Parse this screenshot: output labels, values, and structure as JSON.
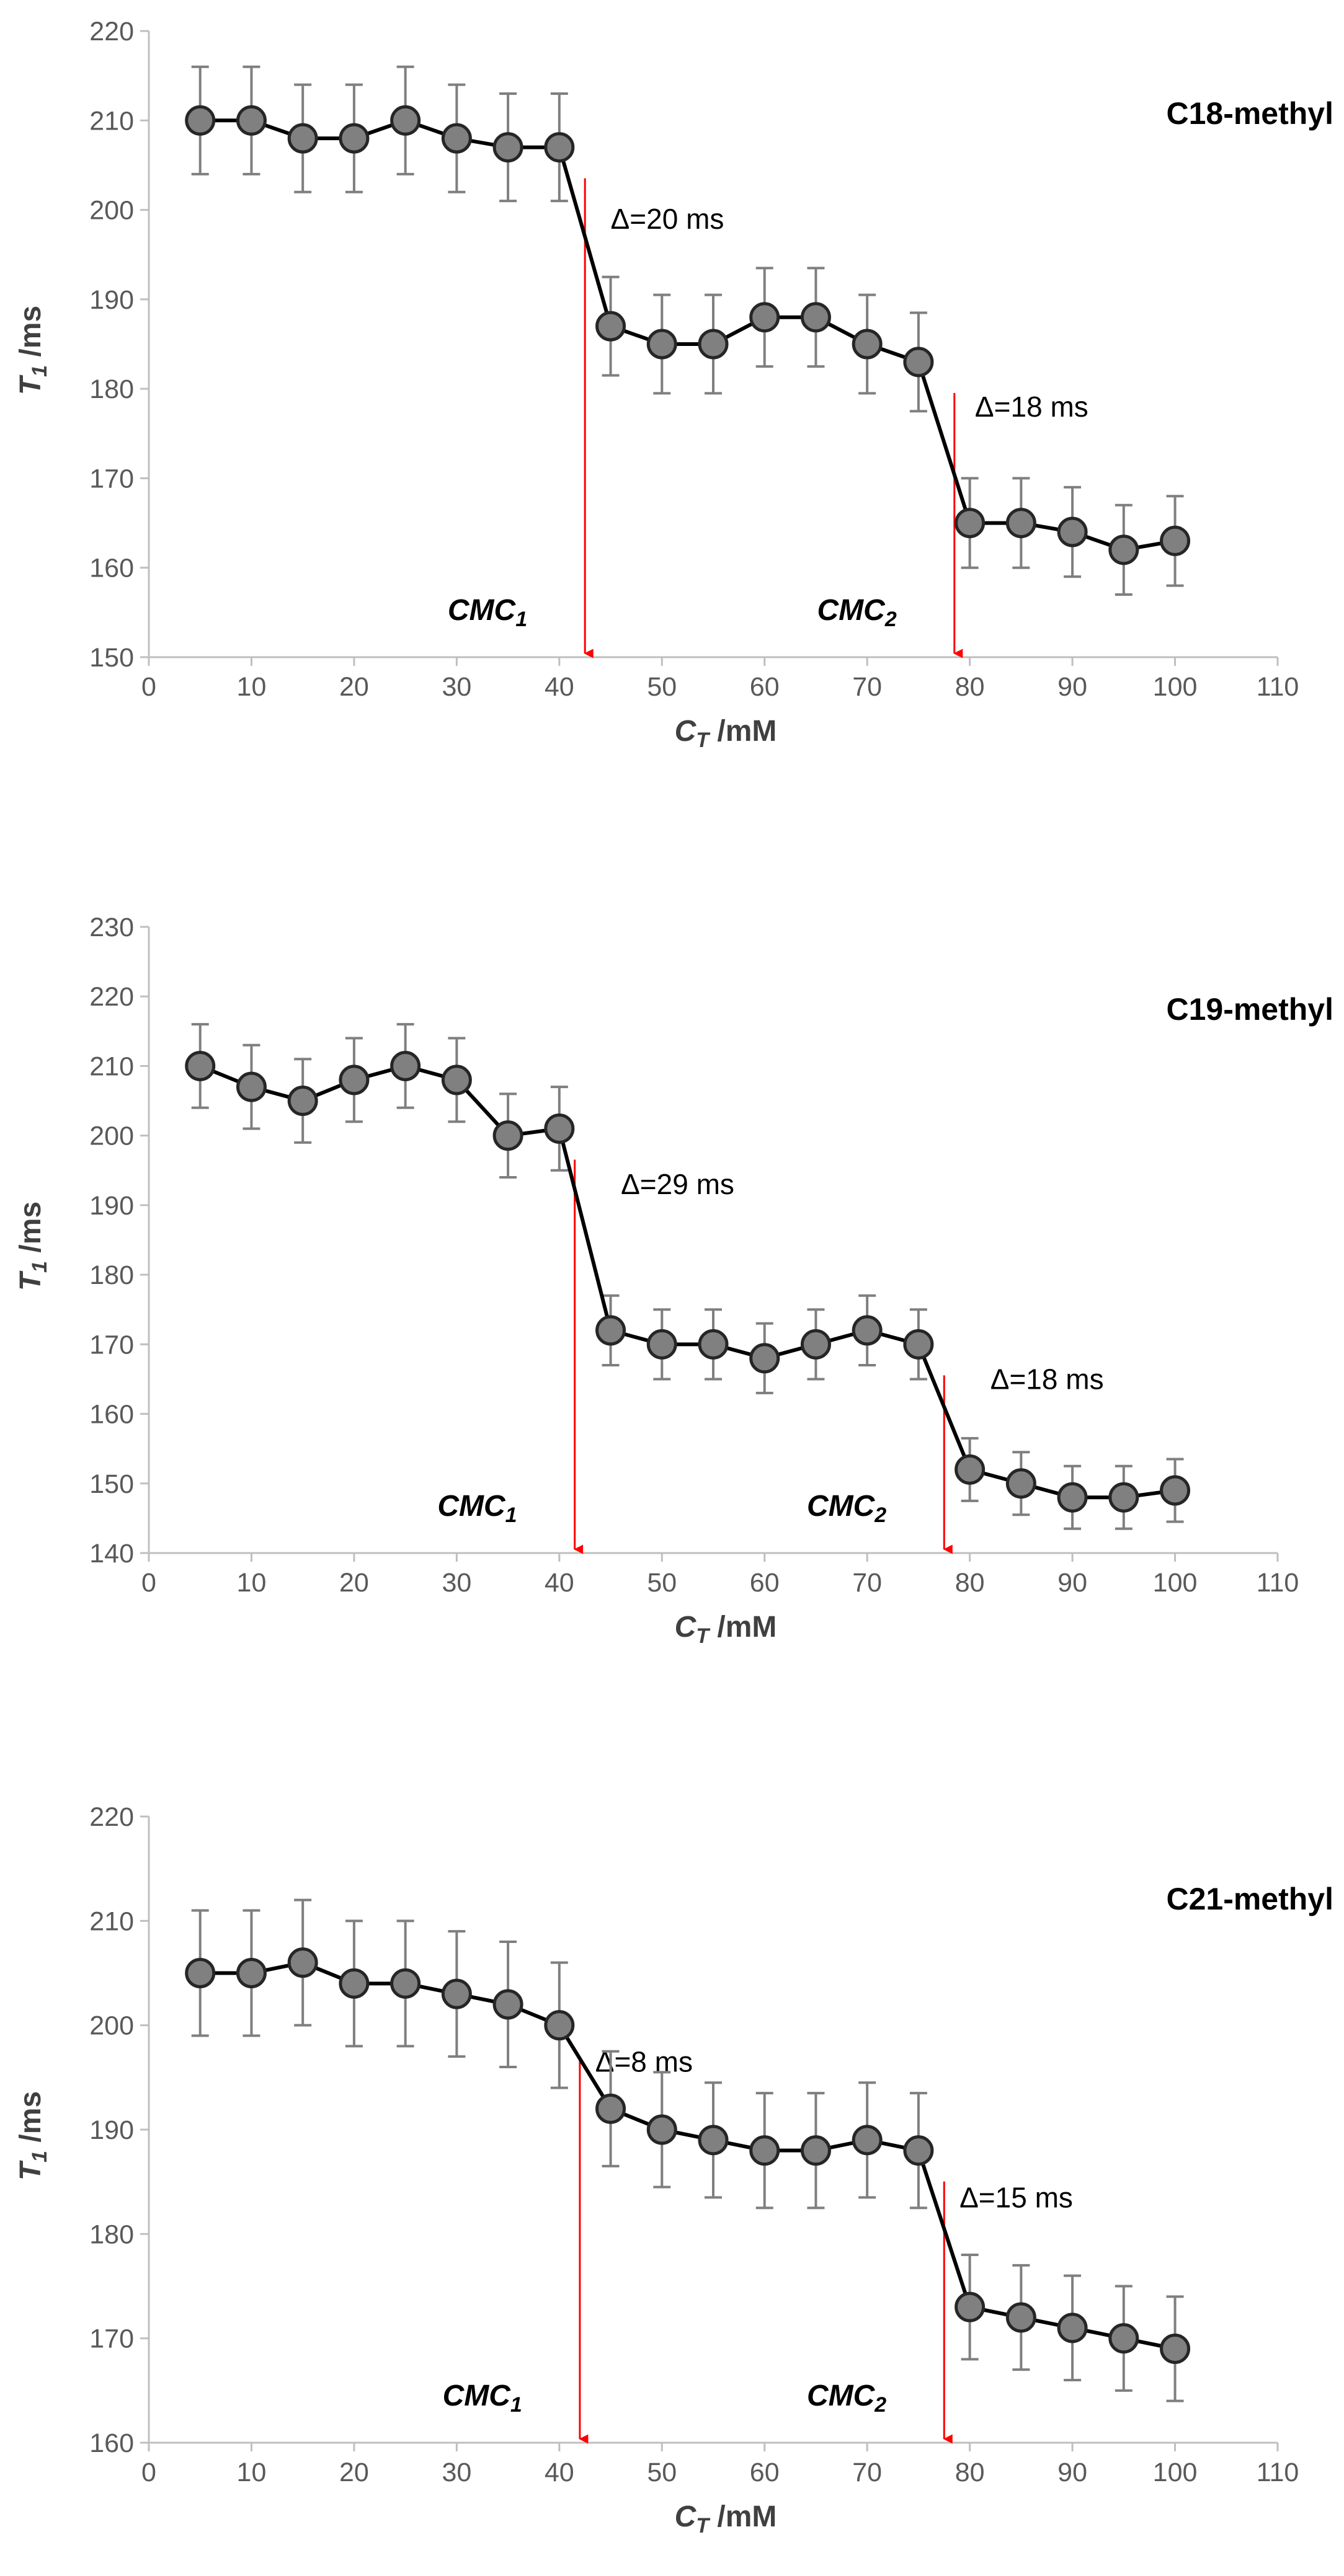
{
  "chart_data": [
    {
      "type": "line",
      "title": "C18-methyl",
      "xlabel": {
        "main": "C",
        "sub": "T",
        "unit": " /mM"
      },
      "ylabel": {
        "main": "T",
        "sub": "1",
        "unit": " /ms"
      },
      "xlim": [
        0,
        110
      ],
      "ylim": [
        150,
        220
      ],
      "xticks": [
        0,
        10,
        20,
        30,
        40,
        50,
        60,
        70,
        80,
        90,
        100,
        110
      ],
      "yticks": [
        150,
        160,
        170,
        180,
        190,
        200,
        210,
        220
      ],
      "series": [
        {
          "name": "T1",
          "x": [
            5,
            10,
            15,
            20,
            25,
            30,
            35,
            40,
            45,
            50,
            55,
            60,
            65,
            70,
            75,
            80,
            85,
            90,
            95,
            100
          ],
          "y": [
            210,
            210,
            208,
            208,
            210,
            208,
            207,
            207,
            187,
            185,
            185,
            188,
            188,
            185,
            183,
            165,
            165,
            164,
            162,
            163
          ],
          "error": [
            6,
            6,
            6,
            6,
            6,
            6,
            6,
            6,
            5.5,
            5.5,
            5.5,
            5.5,
            5.5,
            5.5,
            5.5,
            5,
            5,
            5,
            5,
            5
          ]
        }
      ],
      "annotations": {
        "cmc": [
          {
            "main": "CMC",
            "sub": "1",
            "x": 42.5,
            "label_x": 33
          },
          {
            "main": "CMC",
            "sub": "2",
            "x": 78.5,
            "label_x": 69
          }
        ],
        "deltas": [
          {
            "text": "Δ=20 ms",
            "x": 45,
            "y": 199
          },
          {
            "text": "Δ=18 ms",
            "x": 80.5,
            "y": 178
          }
        ]
      },
      "colors": {
        "marker_fill": "#808080",
        "marker_edge": "#262626",
        "line": "#000000",
        "error": "#7f7f7f",
        "arrow": "#ff0000",
        "axis": "#bfbfbf"
      }
    },
    {
      "type": "line",
      "title": "C19-methyl",
      "xlabel": {
        "main": "C",
        "sub": "T",
        "unit": " /mM"
      },
      "ylabel": {
        "main": "T",
        "sub": "1",
        "unit": " /ms"
      },
      "xlim": [
        0,
        110
      ],
      "ylim": [
        140,
        230
      ],
      "xticks": [
        0,
        10,
        20,
        30,
        40,
        50,
        60,
        70,
        80,
        90,
        100,
        110
      ],
      "yticks": [
        140,
        150,
        160,
        170,
        180,
        190,
        200,
        210,
        220,
        230
      ],
      "series": [
        {
          "name": "T1",
          "x": [
            5,
            10,
            15,
            20,
            25,
            30,
            35,
            40,
            45,
            50,
            55,
            60,
            65,
            70,
            75,
            80,
            85,
            90,
            95,
            100
          ],
          "y": [
            210,
            207,
            205,
            208,
            210,
            208,
            200,
            201,
            172,
            170,
            170,
            168,
            170,
            172,
            170,
            152,
            150,
            148,
            148,
            149
          ],
          "error": [
            6,
            6,
            6,
            6,
            6,
            6,
            6,
            6,
            5,
            5,
            5,
            5,
            5,
            5,
            5,
            4.5,
            4.5,
            4.5,
            4.5,
            4.5
          ]
        }
      ],
      "annotations": {
        "cmc": [
          {
            "main": "CMC",
            "sub": "1",
            "x": 41.5,
            "label_x": 32
          },
          {
            "main": "CMC",
            "sub": "2",
            "x": 77.5,
            "label_x": 68
          }
        ],
        "deltas": [
          {
            "text": "Δ=29 ms",
            "x": 46,
            "y": 193
          },
          {
            "text": "Δ=18 ms",
            "x": 82,
            "y": 165
          }
        ]
      },
      "colors": {
        "marker_fill": "#808080",
        "marker_edge": "#262626",
        "line": "#000000",
        "error": "#7f7f7f",
        "arrow": "#ff0000",
        "axis": "#bfbfbf"
      }
    },
    {
      "type": "line",
      "title": "C21-methyl",
      "xlabel": {
        "main": "C",
        "sub": "T",
        "unit": " /mM"
      },
      "ylabel": {
        "main": "T",
        "sub": "1",
        "unit": " /ms"
      },
      "xlim": [
        0,
        110
      ],
      "ylim": [
        160,
        220
      ],
      "xticks": [
        0,
        10,
        20,
        30,
        40,
        50,
        60,
        70,
        80,
        90,
        100,
        110
      ],
      "yticks": [
        160,
        170,
        180,
        190,
        200,
        210,
        220
      ],
      "series": [
        {
          "name": "T1",
          "x": [
            5,
            10,
            15,
            20,
            25,
            30,
            35,
            40,
            45,
            50,
            55,
            60,
            65,
            70,
            75,
            80,
            85,
            90,
            95,
            100
          ],
          "y": [
            205,
            205,
            206,
            204,
            204,
            203,
            202,
            200,
            192,
            190,
            189,
            188,
            188,
            189,
            188,
            173,
            172,
            171,
            170,
            169
          ],
          "error": [
            6,
            6,
            6,
            6,
            6,
            6,
            6,
            6,
            5.5,
            5.5,
            5.5,
            5.5,
            5.5,
            5.5,
            5.5,
            5,
            5,
            5,
            5,
            5
          ]
        }
      ],
      "annotations": {
        "cmc": [
          {
            "main": "CMC",
            "sub": "1",
            "x": 42,
            "label_x": 32.5
          },
          {
            "main": "CMC",
            "sub": "2",
            "x": 77.5,
            "label_x": 68
          }
        ],
        "deltas": [
          {
            "text": "Δ=8 ms",
            "x": 43.5,
            "y": 196.5
          },
          {
            "text": "Δ=15 ms",
            "x": 79,
            "y": 183.5
          }
        ]
      },
      "colors": {
        "marker_fill": "#808080",
        "marker_edge": "#262626",
        "line": "#000000",
        "error": "#7f7f7f",
        "arrow": "#ff0000",
        "axis": "#bfbfbf"
      }
    }
  ]
}
